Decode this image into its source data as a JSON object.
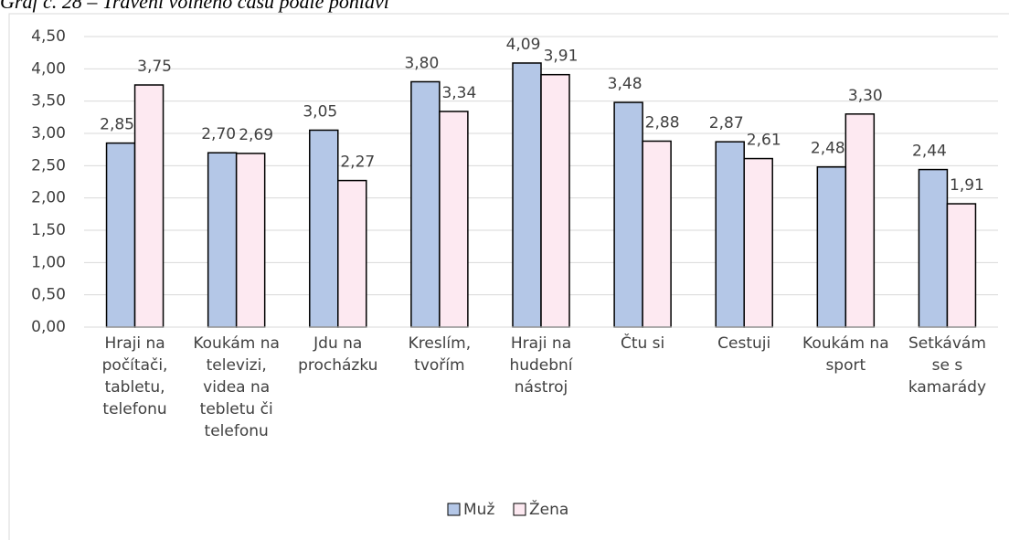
{
  "chart_data": {
    "type": "bar",
    "title": "Graf č. 28 – Trávení volného času podle pohlaví",
    "categories": [
      "Hraji na počítači, tabletu, telefonu",
      "Koukám na televizi, videa na tebletu či telefonu",
      "Jdu na procházku",
      "Kreslím, tvořím",
      "Hraji na hudební nástroj",
      "Čtu si",
      "Cestuji",
      "Koukám na sport",
      "Setkávám se s kamarády"
    ],
    "series": [
      {
        "name": "Muž",
        "color": "#b4c7e7",
        "values": [
          2.85,
          2.7,
          3.05,
          3.8,
          4.09,
          3.48,
          2.87,
          2.48,
          2.44
        ],
        "value_labels": [
          "2,85",
          "2,70",
          "3,05",
          "3,80",
          "4,09",
          "3,48",
          "2,87",
          "2,48",
          "2,44"
        ]
      },
      {
        "name": "Žena",
        "color": "#fde9f1",
        "values": [
          3.75,
          2.69,
          2.27,
          3.34,
          3.91,
          2.88,
          2.61,
          3.3,
          1.91
        ],
        "value_labels": [
          "3,75",
          "2,69",
          "2,27",
          "3,34",
          "3,91",
          "2,88",
          "2,61",
          "3,30",
          "1,91"
        ]
      }
    ],
    "ylim": [
      0,
      4.5
    ],
    "yticks": [
      {
        "value": 0,
        "label": "0,00"
      },
      {
        "value": 0.5,
        "label": "0,50"
      },
      {
        "value": 1,
        "label": "1,00"
      },
      {
        "value": 1.5,
        "label": "1,50"
      },
      {
        "value": 2,
        "label": "2,00"
      },
      {
        "value": 2.5,
        "label": "2,50"
      },
      {
        "value": 3,
        "label": "3,00"
      },
      {
        "value": 3.5,
        "label": "3,50"
      },
      {
        "value": 4,
        "label": "4,00"
      },
      {
        "value": 4.5,
        "label": "4,50"
      }
    ],
    "grid": true,
    "legend": "bottom"
  }
}
